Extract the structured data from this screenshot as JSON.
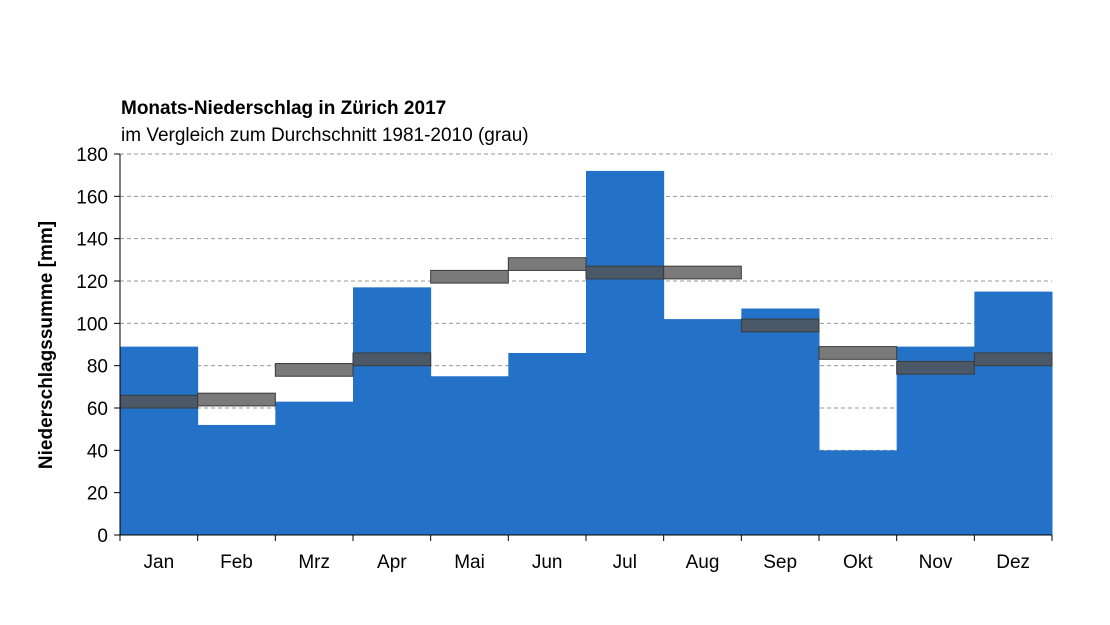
{
  "chart_data": {
    "type": "bar",
    "title": "Monats-Niederschlag in Zürich 2017",
    "subtitle": "im Vergleich zum Durchschnitt 1981-2010 (grau)",
    "xlabel": "",
    "ylabel": "Niederschlagssumme [mm]",
    "ylim": [
      0,
      180
    ],
    "yticks": [
      0,
      20,
      40,
      60,
      80,
      100,
      120,
      140,
      160,
      180
    ],
    "grid": true,
    "categories": [
      "Jan",
      "Feb",
      "Mrz",
      "Apr",
      "Mai",
      "Jun",
      "Jul",
      "Aug",
      "Sep",
      "Okt",
      "Nov",
      "Dez"
    ],
    "series": [
      {
        "values": [
          89,
          52,
          63,
          117,
          75,
          86,
          172,
          102,
          107,
          40,
          89,
          115
        ],
        "color": "#2472c8"
      },
      {
        "values": [
          63,
          64,
          78,
          83,
          122,
          128,
          124,
          124,
          99,
          86,
          79,
          83
        ],
        "color": "#6e6e6e"
      }
    ],
    "colors": {
      "bars": "#2472c8",
      "average_light": "#7a7a7a",
      "average_dark": "#4a5868",
      "grid": "#9a9a9a",
      "axis": "#000000"
    }
  }
}
